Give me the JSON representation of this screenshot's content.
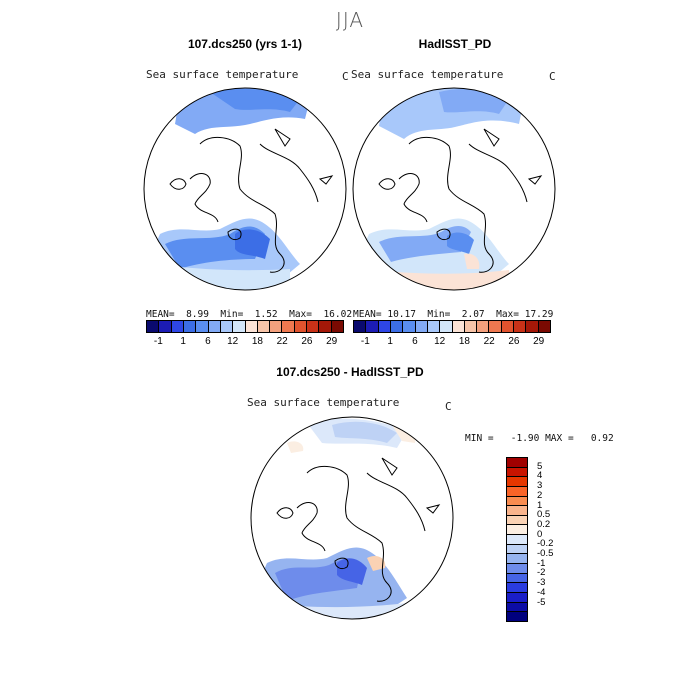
{
  "page": {
    "season": "JJA"
  },
  "left_map": {
    "title": "107.dcs250 (yrs 1-1)",
    "label": "Sea surface temperature",
    "unit": "C",
    "stats": {
      "mean_label": "MEAN=",
      "mean": "8.99",
      "min_label": "Min=",
      "min": "1.52",
      "max_label": "Max=",
      "max": "16.02"
    }
  },
  "right_map": {
    "title": "HadISST_PD",
    "label": "Sea surface temperature",
    "unit": "C",
    "stats": {
      "mean_label": "MEAN=",
      "mean": "10.17",
      "min_label": "Min=",
      "min": "2.07",
      "max_label": "Max=",
      "max": "17.29"
    }
  },
  "diff_map": {
    "title": "107.dcs250 - HadISST_PD",
    "label": "Sea surface temperature",
    "unit": "C",
    "minmax": "MIN =   -1.90 MAX =   0.92"
  },
  "colorbar_abs": {
    "colors": [
      "#0a0a6e",
      "#1c1cb4",
      "#2e46e6",
      "#3c6ee6",
      "#5a8ef0",
      "#82aaf5",
      "#a8c8fa",
      "#d2e6fa",
      "#fbe3d6",
      "#f7c4a8",
      "#f3a07d",
      "#ee7850",
      "#e0532e",
      "#c83218",
      "#a41808",
      "#7a0a02"
    ],
    "ticks": [
      "-1",
      "1",
      "6",
      "12",
      "18",
      "22",
      "26",
      "29"
    ]
  },
  "colorbar_diff": {
    "colors": [
      "#a00000",
      "#c81400",
      "#e63700",
      "#fa6428",
      "#fa8c50",
      "#fab48c",
      "#fad2b4",
      "#fbeee2",
      "#dce8fa",
      "#bed2f5",
      "#96b4f0",
      "#6e8ceb",
      "#4664e6",
      "#2a3ce0",
      "#1a1ec8",
      "#0c0ca6",
      "#00007e"
    ],
    "ticks": [
      "5",
      "4",
      "3",
      "2",
      "1",
      "0.5",
      "0.2",
      "0",
      "-0.2",
      "-0.5",
      "-1",
      "-2",
      "-3",
      "-4",
      "-5"
    ]
  }
}
